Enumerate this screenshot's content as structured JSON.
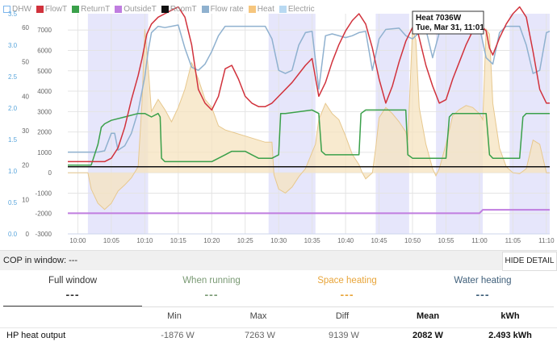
{
  "legend": [
    {
      "label": "DHW",
      "color": "#7cb5ec",
      "hollow": true
    },
    {
      "label": "FlowT",
      "color": "#d1323c",
      "hollow": false
    },
    {
      "label": "ReturnT",
      "color": "#3aa04a",
      "hollow": false
    },
    {
      "label": "OutsideT",
      "color": "#c07de0",
      "hollow": false
    },
    {
      "label": "RoomT",
      "color": "#111111",
      "hollow": false
    },
    {
      "label": "Flow rate",
      "color": "#8fb1cf",
      "hollow": false
    },
    {
      "label": "Heat",
      "color": "#f6c67e",
      "hollow": false
    },
    {
      "label": "Electric",
      "color": "#b8d9f2",
      "hollow": false
    }
  ],
  "tooltip": {
    "line1": "Heat 7036W",
    "line2": "Tue, Mar 31, 11:01"
  },
  "cop_bar": {
    "label": "COP in window: ---",
    "button": "HIDE DETAIL"
  },
  "summary": [
    {
      "title": "Full window",
      "value": "---",
      "color": "#333333"
    },
    {
      "title": "When running",
      "value": "---",
      "color": "#7a9a74"
    },
    {
      "title": "Space heating",
      "value": "---",
      "color": "#e8a53a"
    },
    {
      "title": "Water heating",
      "value": "---",
      "color": "#3f5f7a"
    }
  ],
  "table": {
    "headers": [
      "Min",
      "Max",
      "Diff",
      "Mean",
      "kWh"
    ],
    "row": {
      "label": "HP heat output",
      "cells": [
        "-1876 W",
        "7263 W",
        "9139 W",
        "2082 W",
        "2.493 kWh"
      ]
    }
  },
  "chart_data": {
    "type": "line",
    "x_ticks": [
      "10:00",
      "10:05",
      "10:10",
      "10:15",
      "10:20",
      "10:25",
      "10:30",
      "10:35",
      "10:40",
      "10:45",
      "10:50",
      "10:55",
      "11:00",
      "11:05",
      "11:10"
    ],
    "x_range_minutes": [
      -1.5,
      70.5
    ],
    "y_axes": [
      {
        "ticks": [
          "0.0",
          "0.5",
          "1.0",
          "1.5",
          "2.0",
          "2.5",
          "3.0",
          "3.5"
        ],
        "range": [
          0,
          3.5
        ],
        "color": "#5aa6dc"
      },
      {
        "ticks": [
          "0",
          "10",
          "20",
          "30",
          "40",
          "50",
          "60"
        ],
        "range": [
          0,
          64
        ],
        "color": "#666666"
      },
      {
        "ticks": [
          "-3000",
          "-2000",
          "-1000",
          "0",
          "1000",
          "2000",
          "3000",
          "4000",
          "5000",
          "6000",
          "7000"
        ],
        "range": [
          -3000,
          7800
        ],
        "color": "#666666"
      }
    ],
    "dhw_bands_minutes": [
      [
        1.5,
        10.5
      ],
      [
        28.5,
        35.5
      ],
      [
        44.5,
        49.5
      ],
      [
        53.5,
        60.5
      ],
      [
        64.5,
        70.5
      ]
    ],
    "series": [
      {
        "name": "FlowT",
        "axis": 1,
        "color": "#d1323c",
        "points": [
          [
            -1.5,
            21
          ],
          [
            2,
            21
          ],
          [
            4,
            21
          ],
          [
            5,
            22
          ],
          [
            6,
            25
          ],
          [
            7,
            31
          ],
          [
            8,
            39
          ],
          [
            9,
            46
          ],
          [
            9.6,
            51
          ],
          [
            10.3,
            58
          ],
          [
            11,
            61
          ],
          [
            12,
            63
          ],
          [
            13,
            64
          ],
          [
            14,
            65
          ],
          [
            15,
            66
          ],
          [
            16,
            63
          ],
          [
            17,
            55
          ],
          [
            18,
            42
          ],
          [
            19,
            38
          ],
          [
            20,
            36
          ],
          [
            21,
            40
          ],
          [
            22,
            48
          ],
          [
            23,
            49
          ],
          [
            24,
            45
          ],
          [
            25,
            40
          ],
          [
            26,
            38
          ],
          [
            27,
            37
          ],
          [
            28,
            37
          ],
          [
            29,
            38
          ],
          [
            30,
            40
          ],
          [
            32,
            44
          ],
          [
            34,
            49
          ],
          [
            35,
            51
          ],
          [
            36,
            40
          ],
          [
            37,
            44
          ],
          [
            38,
            50
          ],
          [
            39,
            55
          ],
          [
            40,
            59
          ],
          [
            41,
            62
          ],
          [
            42,
            64
          ],
          [
            43,
            61
          ],
          [
            44,
            54
          ],
          [
            45,
            45
          ],
          [
            46,
            38
          ],
          [
            47,
            43
          ],
          [
            48,
            50
          ],
          [
            49,
            56
          ],
          [
            50,
            60
          ],
          [
            50.5,
            61
          ],
          [
            51,
            57
          ],
          [
            52,
            49
          ],
          [
            53,
            43
          ],
          [
            54,
            38
          ],
          [
            55,
            39
          ],
          [
            56,
            45
          ],
          [
            57,
            50
          ],
          [
            58,
            55
          ],
          [
            59,
            59
          ],
          [
            60,
            61
          ],
          [
            61,
            59
          ],
          [
            61.5,
            54
          ],
          [
            62,
            52
          ],
          [
            63,
            57
          ],
          [
            64,
            61
          ],
          [
            65,
            64
          ],
          [
            66,
            66
          ],
          [
            67,
            63
          ],
          [
            68,
            53
          ],
          [
            69,
            42
          ],
          [
            70,
            38
          ],
          [
            70.5,
            38
          ]
        ]
      },
      {
        "name": "ReturnT",
        "axis": 1,
        "color": "#3aa04a",
        "points": [
          [
            -1.5,
            20
          ],
          [
            2,
            20
          ],
          [
            3,
            26
          ],
          [
            3.5,
            31
          ],
          [
            4,
            32
          ],
          [
            5,
            33
          ],
          [
            7,
            34
          ],
          [
            9,
            35
          ],
          [
            10,
            35
          ],
          [
            11,
            34
          ],
          [
            12,
            35
          ],
          [
            12.3,
            34
          ],
          [
            12.5,
            22
          ],
          [
            13,
            21
          ],
          [
            19,
            21
          ],
          [
            20,
            21
          ],
          [
            21,
            22
          ],
          [
            22,
            23
          ],
          [
            23,
            24
          ],
          [
            24,
            24
          ],
          [
            25,
            24
          ],
          [
            26,
            23
          ],
          [
            27,
            22
          ],
          [
            28,
            22
          ],
          [
            29,
            22
          ],
          [
            30,
            23
          ],
          [
            30.3,
            35
          ],
          [
            31,
            35
          ],
          [
            35,
            36
          ],
          [
            36,
            35
          ],
          [
            36.4,
            24
          ],
          [
            37,
            23
          ],
          [
            41,
            23
          ],
          [
            42,
            23
          ],
          [
            42.3,
            35
          ],
          [
            43,
            36
          ],
          [
            48,
            36
          ],
          [
            49,
            36
          ],
          [
            49.3,
            23
          ],
          [
            50,
            22
          ],
          [
            53,
            22
          ],
          [
            54,
            22
          ],
          [
            55,
            22
          ],
          [
            55.5,
            34
          ],
          [
            56,
            35
          ],
          [
            60,
            35
          ],
          [
            61,
            35
          ],
          [
            61.5,
            23
          ],
          [
            62,
            22
          ],
          [
            66,
            22
          ],
          [
            66.5,
            34
          ],
          [
            67,
            35
          ],
          [
            70.5,
            35
          ]
        ]
      },
      {
        "name": "RoomT",
        "axis": 1,
        "color": "#111111",
        "points": [
          [
            -1.5,
            19.5
          ],
          [
            70.5,
            19.5
          ]
        ]
      },
      {
        "name": "OutsideT",
        "axis": 1,
        "color": "#c07de0",
        "points": [
          [
            -1.5,
            6
          ],
          [
            60,
            6
          ],
          [
            60.5,
            7
          ],
          [
            70.5,
            7
          ]
        ]
      },
      {
        "name": "Flow rate",
        "axis": 0,
        "color": "#8fb1cf",
        "points": [
          [
            -1.5,
            1.3
          ],
          [
            2,
            1.3
          ],
          [
            3,
            1.3
          ],
          [
            4,
            1.32
          ],
          [
            5,
            1.6
          ],
          [
            5.5,
            1.6
          ],
          [
            6,
            1.33
          ],
          [
            7,
            1.4
          ],
          [
            8,
            1.6
          ],
          [
            9,
            1.95
          ],
          [
            10,
            2.5
          ],
          [
            10.5,
            2.9
          ],
          [
            11,
            3.2
          ],
          [
            12,
            3.3
          ],
          [
            13,
            3.28
          ],
          [
            14,
            3.3
          ],
          [
            15,
            3.32
          ],
          [
            16,
            2.95
          ],
          [
            17,
            2.65
          ],
          [
            18,
            2.6
          ],
          [
            19,
            2.7
          ],
          [
            20,
            2.9
          ],
          [
            21,
            3.15
          ],
          [
            22,
            3.3
          ],
          [
            23,
            3.3
          ],
          [
            25,
            3.3
          ],
          [
            27,
            3.3
          ],
          [
            28,
            3.3
          ],
          [
            29,
            3.1
          ],
          [
            30,
            2.6
          ],
          [
            31,
            2.55
          ],
          [
            32,
            2.6
          ],
          [
            33,
            3.0
          ],
          [
            34,
            3.2
          ],
          [
            35,
            3.22
          ],
          [
            36,
            2.3
          ],
          [
            37,
            3.15
          ],
          [
            38,
            3.18
          ],
          [
            40,
            3.12
          ],
          [
            41,
            3.15
          ],
          [
            42,
            3.2
          ],
          [
            43,
            3.22
          ],
          [
            44,
            2.6
          ],
          [
            45,
            3.1
          ],
          [
            46,
            3.25
          ],
          [
            48,
            3.27
          ],
          [
            49,
            3.15
          ],
          [
            50,
            3.1
          ],
          [
            51,
            3.2
          ],
          [
            52,
            3.25
          ],
          [
            53,
            2.8
          ],
          [
            54,
            3.2
          ],
          [
            56,
            3.3
          ],
          [
            58,
            3.3
          ],
          [
            60,
            3.3
          ],
          [
            61,
            2.8
          ],
          [
            62,
            2.7
          ],
          [
            63,
            3.2
          ],
          [
            64,
            3.3
          ],
          [
            66,
            3.3
          ],
          [
            67,
            3.0
          ],
          [
            68,
            2.55
          ],
          [
            69,
            2.6
          ],
          [
            70,
            3.2
          ],
          [
            70.5,
            3.22
          ]
        ]
      },
      {
        "name": "Heat",
        "axis": 2,
        "color": "#f6c67e",
        "fill": true,
        "points": [
          [
            -1.5,
            0
          ],
          [
            1.5,
            0
          ],
          [
            2,
            -800
          ],
          [
            3,
            -1500
          ],
          [
            4,
            -1800
          ],
          [
            5,
            -1500
          ],
          [
            6,
            -900
          ],
          [
            7,
            -600
          ],
          [
            8,
            -250
          ],
          [
            9,
            300
          ],
          [
            9.6,
            3500
          ],
          [
            10,
            7036
          ],
          [
            10.6,
            4800
          ],
          [
            11,
            3000
          ],
          [
            12,
            3600
          ],
          [
            13,
            3100
          ],
          [
            14,
            2500
          ],
          [
            15,
            3200
          ],
          [
            16,
            4100
          ],
          [
            17,
            5400
          ],
          [
            18,
            4600
          ],
          [
            19,
            3600
          ],
          [
            20,
            3200
          ],
          [
            21,
            2300
          ],
          [
            22,
            2100
          ],
          [
            24,
            1900
          ],
          [
            26,
            1700
          ],
          [
            28,
            1500
          ],
          [
            29,
            1500
          ],
          [
            29.3,
            -100
          ],
          [
            30,
            -800
          ],
          [
            31,
            -1000
          ],
          [
            32,
            -700
          ],
          [
            33,
            -200
          ],
          [
            34,
            200
          ],
          [
            35,
            1000
          ],
          [
            35.5,
            1400
          ],
          [
            36,
            2600
          ],
          [
            37,
            3400
          ],
          [
            38,
            2900
          ],
          [
            39,
            2600
          ],
          [
            40,
            1800
          ],
          [
            41,
            900
          ],
          [
            42,
            400
          ],
          [
            42.5,
            0
          ],
          [
            43,
            -300
          ],
          [
            44,
            0
          ],
          [
            44.5,
            1200
          ],
          [
            45,
            2700
          ],
          [
            46,
            3200
          ],
          [
            47,
            2900
          ],
          [
            48,
            2500
          ],
          [
            49,
            2000
          ],
          [
            49.3,
            1600
          ],
          [
            50,
            7036
          ],
          [
            50.5,
            6500
          ],
          [
            51,
            3200
          ],
          [
            52,
            1400
          ],
          [
            53,
            200
          ],
          [
            53.5,
            -150
          ],
          [
            54,
            200
          ],
          [
            55,
            1400
          ],
          [
            56,
            2800
          ],
          [
            57,
            3100
          ],
          [
            58,
            3300
          ],
          [
            59,
            3200
          ],
          [
            60,
            2900
          ],
          [
            60.5,
            2600
          ],
          [
            61,
            7036
          ],
          [
            61.5,
            6800
          ],
          [
            62,
            3400
          ],
          [
            63,
            1200
          ],
          [
            64,
            300
          ],
          [
            65,
            0
          ],
          [
            66,
            -50
          ],
          [
            67,
            200
          ],
          [
            68,
            1600
          ],
          [
            69,
            1400
          ],
          [
            70,
            0
          ],
          [
            70.5,
            0
          ]
        ]
      }
    ]
  }
}
